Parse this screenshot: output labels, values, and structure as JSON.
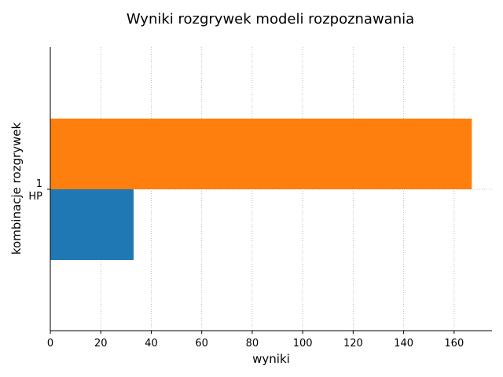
{
  "chart_data": {
    "type": "bar",
    "orientation": "horizontal",
    "title": "Wyniki rozgrywek modeli rozpoznawania",
    "xlabel": "wyniki",
    "ylabel": "kombinacje rozgrywek",
    "xlim": [
      0,
      175
    ],
    "xticks": [
      "0",
      "20",
      "40",
      "60",
      "80",
      "100",
      "120",
      "140",
      "160"
    ],
    "categories": [
      [
        "1",
        "HP"
      ]
    ],
    "series": [
      {
        "color": "#1f77b4",
        "values": [
          33
        ]
      },
      {
        "color": "#ff7f0e",
        "values": [
          167
        ]
      }
    ],
    "grid": "x-dotted",
    "legend": "none"
  }
}
